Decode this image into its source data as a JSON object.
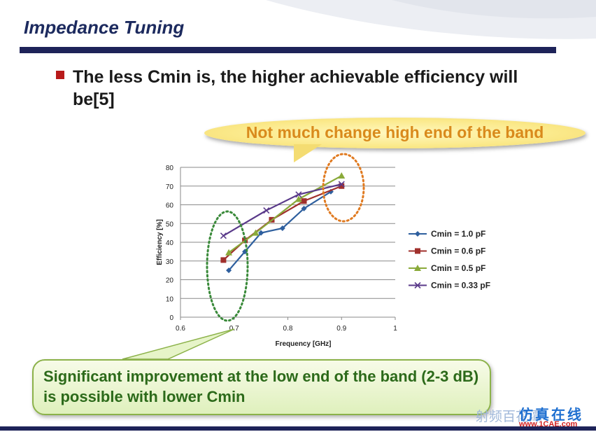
{
  "slide": {
    "title": "Impedance Tuning",
    "bullet": "The less Cmin is, the higher achievable efficiency will be[5]",
    "callout_top": "Not much change high end of the band",
    "callout_bottom": "Significant improvement at the low end of the band (2-3 dB) is possible with lower Cmin",
    "watermark": "射频百花潭",
    "watermark_brand": "仿真在线",
    "watermark_site": "www.1CAE.com"
  },
  "colors": {
    "title": "#1c2a5e",
    "rule": "#1e2359",
    "bullet": "#b81a1a",
    "callout_top_text": "#d98a1c",
    "callout_bottom_text": "#2c6a1a",
    "low_end_ellipse": "#3a8a3a",
    "high_end_ellipse": "#e07a20"
  },
  "chart_data": {
    "type": "line",
    "xlabel": "Frequency [GHz]",
    "ylabel": "Efficiency [%]",
    "xlim": [
      0.6,
      1
    ],
    "ylim": [
      0,
      80
    ],
    "xticks": [
      "0.6",
      "0.7",
      "0.8",
      "0.9",
      "1"
    ],
    "yticks": [
      "0",
      "10",
      "20",
      "30",
      "40",
      "50",
      "60",
      "70",
      "80"
    ],
    "grid": "horizontal",
    "legend": "right",
    "series": [
      {
        "name": "Cmin = 1.0 pF",
        "color": "#2e5f9e",
        "marker": "diamond",
        "x": [
          0.69,
          0.72,
          0.75,
          0.79,
          0.83,
          0.88
        ],
        "y": [
          25,
          35,
          45,
          47.5,
          58,
          67
        ]
      },
      {
        "name": "Cmin = 0.6 pF",
        "color": "#a0302c",
        "marker": "square",
        "x": [
          0.68,
          0.72,
          0.77,
          0.83,
          0.9
        ],
        "y": [
          30.5,
          41,
          52,
          62,
          70
        ]
      },
      {
        "name": "Cmin = 0.5 pF",
        "color": "#8aaa3a",
        "marker": "triangle",
        "x": [
          0.69,
          0.74,
          0.82,
          0.9
        ],
        "y": [
          34.5,
          45,
          63,
          75.5
        ]
      },
      {
        "name": "Cmin = 0.33 pF",
        "color": "#5a3a8a",
        "marker": "x",
        "x": [
          0.68,
          0.76,
          0.82,
          0.9
        ],
        "y": [
          43.5,
          57,
          65.5,
          71
        ]
      }
    ]
  }
}
